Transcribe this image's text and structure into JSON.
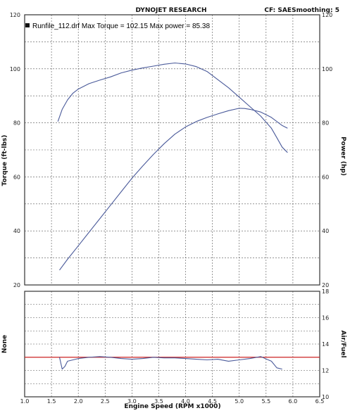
{
  "header": {
    "title": "DYNOJET RESEARCH",
    "cf": "CF: SAE",
    "smoothing": "Smoothing: 5"
  },
  "legend": {
    "run_label": "Runfile_112.drf Max Torque = 102.15   Max power = 85.38"
  },
  "colors": {
    "curve": "#4a5a9a",
    "afr_target": "#cc2222",
    "grid": "#555555",
    "frame": "#333333"
  },
  "chart_data": [
    {
      "type": "line",
      "title": "DYNOJET RESEARCH",
      "xlabel": "Engine Speed (RPM x1000)",
      "ylabel": "Torque (ft-lbs)",
      "ylabel_right": "Power (hp)",
      "xlim": [
        1.0,
        6.5
      ],
      "ylim": [
        20,
        120
      ],
      "ylim_right": [
        20,
        120
      ],
      "x_ticks": [
        "1.0",
        "1.5",
        "2.0",
        "2.5",
        "3.0",
        "3.5",
        "4.0",
        "4.5",
        "5.0",
        "5.5",
        "6.0",
        "6.5"
      ],
      "y_ticks": [
        "20",
        "40",
        "60",
        "80",
        "100",
        "120"
      ],
      "y_ticks_right": [
        "20",
        "40",
        "60",
        "80",
        "100",
        "120"
      ],
      "grid": true,
      "series": [
        {
          "name": "Torque",
          "x": [
            1.62,
            1.7,
            1.8,
            1.9,
            2.0,
            2.2,
            2.4,
            2.6,
            2.8,
            3.0,
            3.2,
            3.4,
            3.6,
            3.8,
            4.0,
            4.2,
            4.4,
            4.6,
            4.8,
            5.0,
            5.2,
            5.4,
            5.6,
            5.7,
            5.8,
            5.9
          ],
          "values": [
            80.5,
            85,
            88.5,
            91,
            92.5,
            94.5,
            95.8,
            97,
            98.5,
            99.5,
            100.3,
            101,
            101.7,
            102.15,
            101.8,
            100.8,
            99,
            96,
            93,
            89.5,
            86,
            82.5,
            78,
            74.5,
            71,
            69
          ]
        },
        {
          "name": "Power",
          "x": [
            1.65,
            1.8,
            2.0,
            2.2,
            2.4,
            2.6,
            2.8,
            3.0,
            3.2,
            3.4,
            3.6,
            3.8,
            4.0,
            4.2,
            4.4,
            4.6,
            4.8,
            5.0,
            5.1,
            5.2,
            5.4,
            5.6,
            5.8,
            5.9
          ],
          "values": [
            25.5,
            29.5,
            34.5,
            39.5,
            44.5,
            49.5,
            54.5,
            59.5,
            64,
            68.3,
            72.3,
            75.8,
            78.5,
            80.5,
            82,
            83.3,
            84.5,
            85.38,
            85.3,
            85,
            84,
            82,
            79,
            78
          ]
        }
      ]
    },
    {
      "type": "line",
      "xlabel": "Engine Speed (RPM x1000)",
      "ylabel": "None",
      "ylabel_right": "Air/Fuel",
      "xlim": [
        1.0,
        6.5
      ],
      "ylim_right": [
        10,
        18
      ],
      "x_ticks": [
        "1.0",
        "1.5",
        "2.0",
        "2.5",
        "3.0",
        "3.5",
        "4.0",
        "4.5",
        "5.0",
        "5.5",
        "6.0",
        "6.5"
      ],
      "y_ticks_right": [
        "10",
        "12",
        "14",
        "16",
        "18"
      ],
      "grid": true,
      "reference_line": 13,
      "series": [
        {
          "name": "Air/Fuel",
          "x": [
            1.65,
            1.7,
            1.75,
            1.8,
            1.9,
            2.0,
            2.2,
            2.4,
            2.6,
            2.8,
            3.0,
            3.2,
            3.4,
            3.6,
            3.8,
            4.0,
            4.2,
            4.4,
            4.6,
            4.8,
            5.0,
            5.2,
            5.4,
            5.6,
            5.7,
            5.8
          ],
          "values": [
            13.0,
            12.1,
            12.3,
            12.7,
            12.8,
            12.9,
            13.0,
            13.05,
            13.0,
            12.9,
            12.85,
            12.9,
            13.0,
            12.95,
            12.95,
            12.9,
            12.85,
            12.8,
            12.85,
            12.7,
            12.8,
            12.9,
            13.05,
            12.7,
            12.2,
            12.1
          ]
        }
      ]
    }
  ]
}
